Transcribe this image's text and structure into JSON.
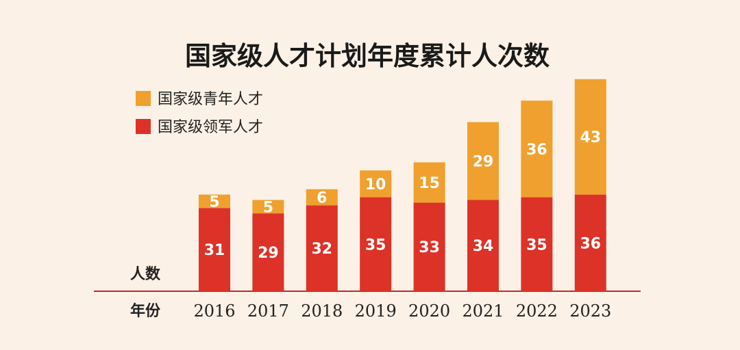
{
  "colors": {
    "background": "#fbf1e6",
    "youth": "#f0a02e",
    "leader": "#dc3228",
    "axis": "#c22a25"
  },
  "chart_data": {
    "type": "bar",
    "stacked": true,
    "title": "国家级人才计划年度累计人次数",
    "ylabel": "人数",
    "xlabel": "年份",
    "categories": [
      "2016",
      "2017",
      "2018",
      "2019",
      "2020",
      "2021",
      "2022",
      "2023"
    ],
    "series": [
      {
        "name": "国家级领军人才",
        "color": "#dc3228",
        "values": [
          31,
          29,
          32,
          35,
          33,
          34,
          35,
          36
        ]
      },
      {
        "name": "国家级青年人才",
        "color": "#f0a02e",
        "values": [
          5,
          5,
          6,
          10,
          15,
          29,
          36,
          43
        ]
      }
    ],
    "legend": {
      "position": "top-left",
      "entries": [
        {
          "name": "国家级青年人才",
          "color": "#f0a02e"
        },
        {
          "name": "国家级领军人才",
          "color": "#dc3228"
        }
      ]
    },
    "ylim": [
      0,
      82
    ],
    "grid": false
  }
}
